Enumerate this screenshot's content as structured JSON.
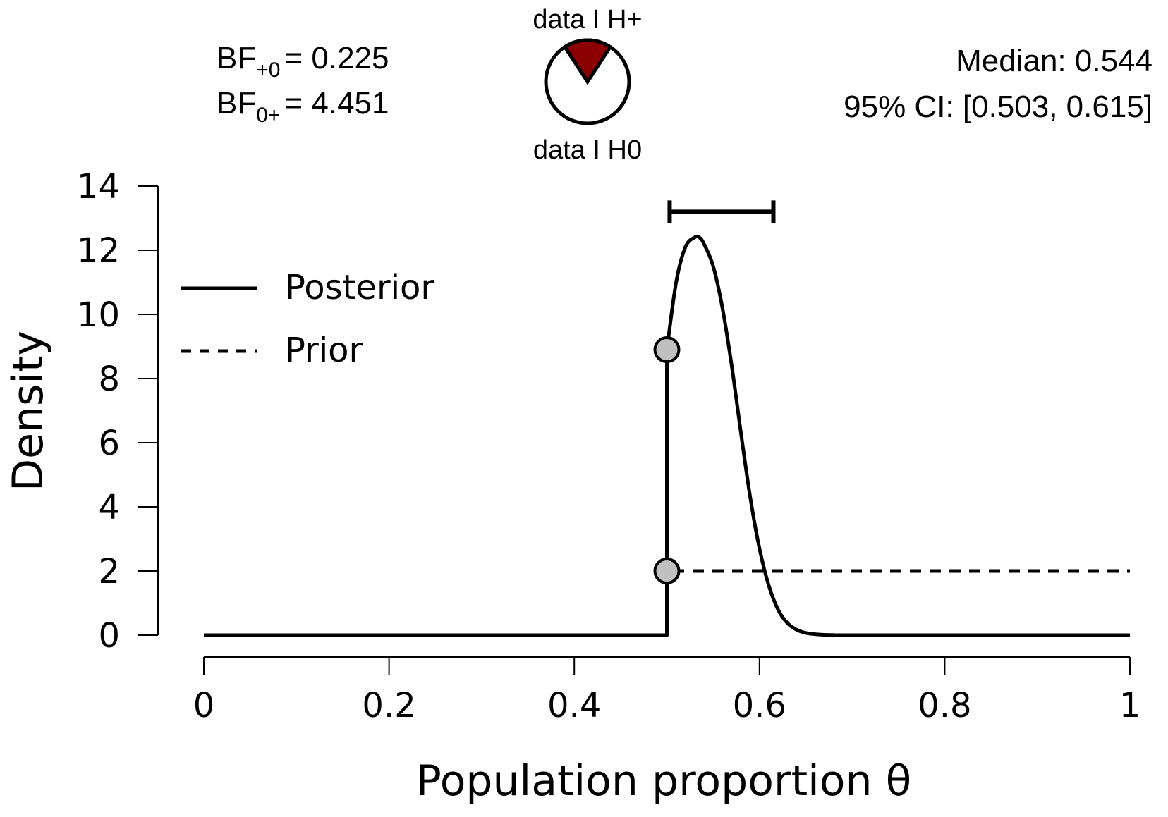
{
  "chart_data": {
    "type": "line",
    "xlabel": "Population proportion θ",
    "ylabel": "Density",
    "xlim": [
      0,
      1
    ],
    "ylim": [
      0,
      14
    ],
    "x_ticks": [
      "0",
      "0.2",
      "0.4",
      "0.6",
      "0.8",
      "1"
    ],
    "x_tick_values": [
      0,
      0.2,
      0.4,
      0.6,
      0.8,
      1
    ],
    "y_ticks": [
      "0",
      "2",
      "4",
      "6",
      "8",
      "10",
      "12",
      "14"
    ],
    "y_tick_values": [
      0,
      2,
      4,
      6,
      8,
      10,
      12,
      14
    ],
    "grid": false,
    "legend": {
      "placement": "top-left",
      "entries": [
        {
          "label": "Posterior",
          "style": "solid"
        },
        {
          "label": "Prior",
          "style": "dashed"
        }
      ]
    },
    "series": [
      {
        "name": "Posterior",
        "style": "solid",
        "x": [
          0,
          0.5,
          0.5,
          0.51,
          0.52,
          0.53,
          0.535,
          0.54,
          0.55,
          0.56,
          0.57,
          0.58,
          0.59,
          0.6,
          0.61,
          0.62,
          0.63,
          0.64,
          0.65,
          0.66,
          0.67,
          0.68,
          0.7,
          1
        ],
        "values": [
          0,
          0,
          8.9,
          11.0,
          12.1,
          12.4,
          12.4,
          12.2,
          11.5,
          10.2,
          8.4,
          6.3,
          4.3,
          2.7,
          1.55,
          0.8,
          0.38,
          0.17,
          0.07,
          0.03,
          0.01,
          0.005,
          0,
          0
        ]
      },
      {
        "name": "Prior",
        "style": "dashed",
        "x": [
          0,
          0.5,
          0.5,
          1
        ],
        "values": [
          0,
          0,
          2,
          2
        ]
      }
    ],
    "points": [
      {
        "x": 0.5,
        "y": 8.9,
        "color": "#c0c0c0"
      },
      {
        "x": 0.5,
        "y": 2,
        "color": "#c0c0c0"
      }
    ],
    "credible_interval": {
      "lower": 0.503,
      "upper": 0.615,
      "y": 13.2
    }
  },
  "annotations": {
    "bf_plus0_prefix": "BF",
    "bf_plus0_sub": "+0",
    "bf_plus0_value": "= 0.225",
    "bf_0plus_prefix": "BF",
    "bf_0plus_sub": "0+",
    "bf_0plus_value": "= 4.451",
    "median": "Median: 0.544",
    "ci": "95% CI: [0.503, 0.615]",
    "pie_top_label": "data I H+",
    "pie_bottom_label": "data I H0"
  },
  "pie": {
    "fraction_h_plus": 0.184,
    "color_h_plus": "#8b0000",
    "color_h0": "#ffffff"
  }
}
